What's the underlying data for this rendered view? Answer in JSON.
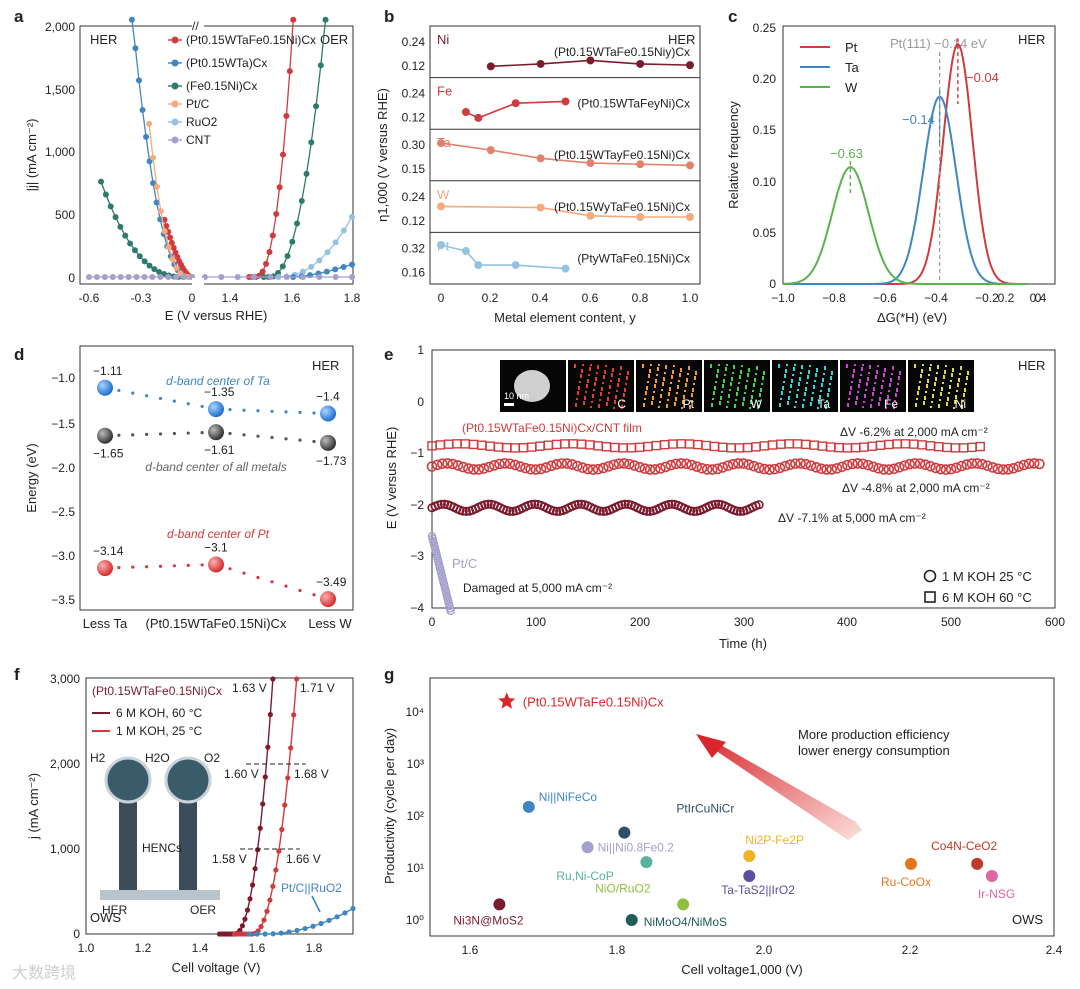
{
  "colors": {
    "dark_red": "#7b1c2e",
    "red": "#cf3b3e",
    "blue": "#3f86c2",
    "teal": "#2e7a6c",
    "peach": "#f2aa7f",
    "lightblue": "#93c3df",
    "lavender": "#a4a0cd",
    "green": "#59b24c"
  },
  "watermark": "大数跨境",
  "panel_a": {
    "letter": "a",
    "xlabel": "E (V versus RHE)",
    "ylabel": "|j| (mA cm⁻²)",
    "tag_left": "HER",
    "tag_right": "OER",
    "xticks": [
      "-0.6",
      "-0.3",
      "0",
      "1.4",
      "1.6",
      "1.8"
    ],
    "yticks": [
      "0",
      "500",
      "1,000",
      "1,500",
      "2,000"
    ],
    "legend": [
      "(Pt0.15WTaFe0.15Ni)Cx",
      "(Pt0.15WTa)Cx",
      "(Fe0.15Ni)Cx",
      "Pt/C",
      "RuO2",
      "CNT"
    ]
  },
  "panel_b": {
    "letter": "b",
    "ylabel": "η1,000 (V versus RHE)",
    "xlabel": "Metal element content, y",
    "tag": "HER",
    "xticks": [
      "0",
      "0.2",
      "0.4",
      "0.6",
      "0.8",
      "1.0"
    ],
    "rows": [
      {
        "element": "Ni",
        "formula": "(Pt0.15WTaFe0.15Niy)Cx",
        "yticks": [
          "0.24",
          "0.12"
        ],
        "x": [
          0.2,
          0.4,
          0.6,
          0.8,
          1.0
        ],
        "y": [
          0.125,
          0.145,
          0.175,
          0.145,
          0.135
        ]
      },
      {
        "element": "Fe",
        "formula": "(Pt0.15WTaFeyNi)Cx",
        "yticks": [
          "0.24",
          "0.12"
        ],
        "x": [
          0.1,
          0.15,
          0.3,
          0.5
        ],
        "y": [
          0.175,
          0.125,
          0.25,
          0.265
        ]
      },
      {
        "element": "Ta",
        "formula": "(Pt0.15WTayFe0.15Ni)Cx",
        "yticks": [
          "0.30",
          "0.15"
        ],
        "x": [
          0,
          0.2,
          0.4,
          0.6,
          0.8,
          1.0
        ],
        "y": [
          0.35,
          0.29,
          0.22,
          0.18,
          0.17,
          0.16
        ]
      },
      {
        "element": "W",
        "formula": "(Pt0.15WyTaFe0.15Ni)Cx",
        "yticks": [
          "0.24",
          "0.12"
        ],
        "x": [
          0,
          0.4,
          0.6,
          0.8,
          1.0
        ],
        "y": [
          0.25,
          0.24,
          0.17,
          0.16,
          0.16
        ]
      },
      {
        "element": "Pt",
        "formula": "(PtyWTaFe0.15Ni)Cx",
        "yticks": [
          "0.32",
          "0.16"
        ],
        "x": [
          0,
          0.1,
          0.15,
          0.3,
          0.5
        ],
        "y": [
          0.36,
          0.31,
          0.19,
          0.19,
          0.16
        ]
      }
    ]
  },
  "panel_c": {
    "letter": "c",
    "xlabel": "ΔG(*H) (eV)",
    "ylabel": "Relative frequency",
    "tag": "HER",
    "ref_label": "Pt(111) −0.14 eV",
    "xticks": [
      "−1.0",
      "−0.8",
      "−0.6",
      "−0.4",
      "−0.2",
      "0",
      "0.2",
      "0.4"
    ],
    "yticks": [
      "0",
      "0.05",
      "0.10",
      "0.15",
      "0.20",
      "0.25"
    ],
    "legend": [
      "Pt",
      "Ta",
      "W"
    ],
    "peak_labels": [
      "−0.04",
      "−0.14",
      "−0.63"
    ],
    "curves": [
      {
        "name": "Pt",
        "mu": -0.04,
        "sigma": 0.08,
        "peak": 0.238
      },
      {
        "name": "Ta",
        "mu": -0.14,
        "sigma": 0.09,
        "peak": 0.186
      },
      {
        "name": "W",
        "mu": -0.63,
        "sigma": 0.1,
        "peak": 0.116
      }
    ]
  },
  "panel_d": {
    "letter": "d",
    "ylabel": "Energy (eV)",
    "tag": "HER",
    "xticks": [
      "Less Ta",
      "(Pt0.15WTaFe0.15Ni)Cx",
      "Less W"
    ],
    "yticks": [
      "−1.0",
      "−1.5",
      "−2.0",
      "−2.5",
      "−3.0",
      "−3.5"
    ],
    "series_labels": [
      "d-band center of Ta",
      "d-band center of all metals",
      "d-band center of Pt"
    ],
    "series": [
      {
        "labels": [
          "−1.11",
          "−1.35",
          "−1.4"
        ],
        "y": [
          -1.11,
          -1.35,
          -1.4
        ]
      },
      {
        "labels": [
          "−1.65",
          "−1.61",
          "−1.73"
        ],
        "y": [
          -1.65,
          -1.61,
          -1.73
        ]
      },
      {
        "labels": [
          "−3.14",
          "−3.1",
          "−3.49"
        ],
        "y": [
          -3.14,
          -3.1,
          -3.49
        ]
      }
    ]
  },
  "panel_e": {
    "letter": "e",
    "xlabel": "Time (h)",
    "ylabel": "E (V versus RHE)",
    "tag": "HER",
    "xticks": [
      "0",
      "100",
      "200",
      "300",
      "400",
      "500",
      "600"
    ],
    "yticks": [
      "1",
      "0",
      "−1",
      "−2",
      "−3",
      "−4"
    ],
    "film_label": "(Pt0.15WTaFe0.15Ni)Cx/CNT film",
    "ptc_label": "Pt/C",
    "damaged_label": "Damaged at 5,000 mA cm⁻²",
    "dv_labels": [
      "ΔV -6.2% at 2,000 mA cm⁻²",
      "ΔV -4.8% at 2,000 mA cm⁻²",
      "ΔV -7.1% at 5,000 mA cm⁻²"
    ],
    "legend": [
      "1 M KOH 25 °C",
      "6 M KOH 60 °C"
    ],
    "eds": [
      "",
      "C",
      "Pt",
      "W",
      "Ta",
      "Fe",
      "Ni"
    ],
    "scale_bar": "10 nm"
  },
  "panel_f": {
    "letter": "f",
    "xlabel": "Cell voltage (V)",
    "ylabel": "j (mA cm⁻²)",
    "tag": "OWS",
    "xticks": [
      "1.0",
      "1.2",
      "1.4",
      "1.6",
      "1.8"
    ],
    "yticks": [
      "0",
      "1,000",
      "2,000",
      "3,000"
    ],
    "legend_title": "(Pt0.15WTaFe0.15Ni)Cx",
    "legend": [
      "6 M KOH, 60 °C",
      "1 M KOH, 25 °C"
    ],
    "ptc_label": "Pt/C||RuO2",
    "v_labels": [
      "1.63 V",
      "1.71 V",
      "1.60 V",
      "1.68 V",
      "1.58 V",
      "1.66 V"
    ],
    "inset": [
      "H2",
      "H2O",
      "O2",
      "HENCs",
      "HER",
      "OER"
    ]
  },
  "panel_g": {
    "letter": "g",
    "xlabel": "Cell voltage1,000 (V)",
    "ylabel": "Productivity (cycle per day)",
    "tag": "OWS",
    "arrow_text": [
      "More production efficiency",
      "lower energy consumption"
    ],
    "xticks": [
      "1.6",
      "1.8",
      "2.0",
      "2.2",
      "2.4"
    ],
    "yticks": [
      "10⁰",
      "10¹",
      "10²",
      "10³",
      "10⁴"
    ],
    "points": [
      {
        "label": "(Pt0.15WTaFe0.15Ni)Cx",
        "x": 1.65,
        "y": 16000,
        "color": "#d9262b"
      },
      {
        "label": "Ni||NiFeCo",
        "x": 1.68,
        "y": 150,
        "color": "#3f86c2"
      },
      {
        "label": "PtIrCuNiCr",
        "x": 1.81,
        "y": 48,
        "color": "#2f4f66"
      },
      {
        "label": "Ni||Ni0.8Fe0.2",
        "x": 1.76,
        "y": 25,
        "color": "#a4a0cd"
      },
      {
        "label": "Ru,Ni-CoP",
        "x": 1.84,
        "y": 13,
        "color": "#59b2a0"
      },
      {
        "label": "Ni2P-Fe2P",
        "x": 1.98,
        "y": 17,
        "color": "#f0b323"
      },
      {
        "label": "Ta-TaS2||IrO2",
        "x": 1.98,
        "y": 7,
        "color": "#5a4fa0"
      },
      {
        "label": "NiO/RuO2",
        "x": 1.89,
        "y": 2,
        "color": "#8dc03f"
      },
      {
        "label": "NiMoO4/NiMoS",
        "x": 1.82,
        "y": 1,
        "color": "#1f5c5a"
      },
      {
        "label": "Ni3N@MoS2",
        "x": 1.64,
        "y": 2,
        "color": "#7b1c2e"
      },
      {
        "label": "Ru-CoOx",
        "x": 2.2,
        "y": 12,
        "color": "#e2761e"
      },
      {
        "label": "Co4N-CeO2",
        "x": 2.29,
        "y": 12,
        "color": "#c0392b"
      },
      {
        "label": "Ir-NSG",
        "x": 2.31,
        "y": 7,
        "color": "#e066a0"
      }
    ]
  }
}
